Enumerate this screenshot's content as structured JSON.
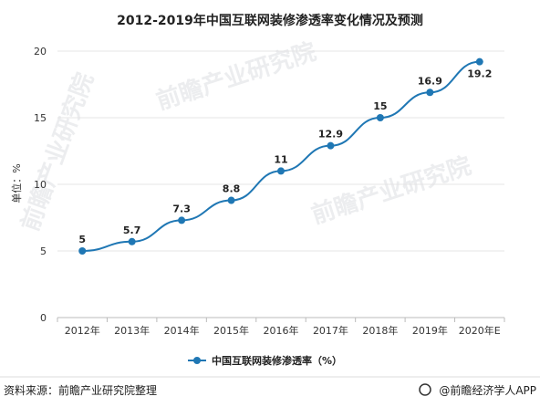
{
  "chart_data": {
    "type": "line",
    "title": "2012-2019年中国互联网装修渗透率变化情况及预测",
    "ylabel": "单位：%",
    "xlabel": "",
    "categories": [
      "2012年",
      "2013年",
      "2014年",
      "2015年",
      "2016年",
      "2017年",
      "2018年",
      "2019年",
      "2020年E"
    ],
    "series": [
      {
        "name": "中国互联网装修渗透率（%）",
        "values": [
          5,
          5.7,
          7.3,
          8.8,
          11,
          12.9,
          15,
          16.9,
          19.2
        ]
      }
    ],
    "data_labels": [
      "5",
      "5.7",
      "7.3",
      "8.8",
      "11",
      "12.9",
      "15",
      "16.9",
      "19.2"
    ],
    "ylim": [
      0,
      20
    ],
    "yticks": [
      0,
      5,
      10,
      15,
      20
    ],
    "grid": true,
    "legend_position": "bottom",
    "line_color": "#1f77b4"
  },
  "watermark": {
    "text": "前瞻产业研究院"
  },
  "footer": {
    "source": "资料来源：前瞻产业研究院整理",
    "brand": "@前瞻经济学人APP"
  }
}
